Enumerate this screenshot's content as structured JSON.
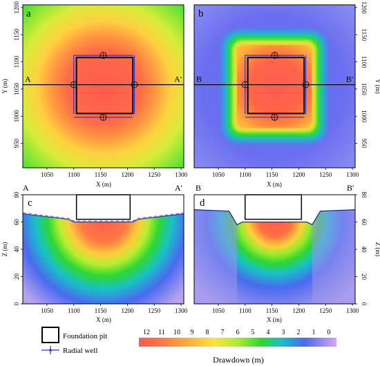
{
  "chart_data": [
    {
      "type": "heatmap",
      "panel": "a",
      "xlabel": "X (m)",
      "ylabel": "Y (m)",
      "xticks": [
        1050,
        1100,
        1150,
        1200,
        1250,
        1300
      ],
      "yticks": [
        950,
        1000,
        1050,
        1100,
        1150,
        1200
      ],
      "xlim": [
        1005,
        1305
      ],
      "ylim": [
        905,
        1205
      ],
      "section_labels": [
        "A",
        "A'"
      ],
      "section_y": 1058,
      "foundation_pit": {
        "x": [
          1105,
          1210
        ],
        "y": [
          1005,
          1108
        ]
      },
      "radial_wells": [
        [
          1155,
          1112
        ],
        [
          1155,
          998
        ],
        [
          1100,
          1058
        ],
        [
          1213,
          1058
        ]
      ],
      "drawdown_max": 11.5
    },
    {
      "type": "heatmap",
      "panel": "b",
      "xlabel": "X (m)",
      "ylabel": "Y (m)",
      "xticks": [
        1050,
        1100,
        1150,
        1200,
        1250,
        1300
      ],
      "yticks": [
        950,
        1000,
        1050,
        1100,
        1150,
        1200
      ],
      "xlim": [
        1005,
        1305
      ],
      "ylim": [
        905,
        1205
      ],
      "section_labels": [
        "B",
        "B'"
      ],
      "section_y": 1058,
      "foundation_pit": {
        "x": [
          1105,
          1210
        ],
        "y": [
          1005,
          1108
        ]
      },
      "radial_wells": [
        [
          1155,
          1112
        ],
        [
          1155,
          998
        ],
        [
          1100,
          1058
        ],
        [
          1213,
          1058
        ]
      ],
      "drawdown_max": 11.5
    },
    {
      "type": "heatmap",
      "panel": "c",
      "xlabel": "X (m)",
      "ylabel": "Z (m)",
      "xticks": [
        1050,
        1100,
        1150,
        1200,
        1250,
        1300
      ],
      "yticks": [
        0,
        20,
        40,
        60,
        80
      ],
      "xlim": [
        1005,
        1305
      ],
      "ylim": [
        0,
        80
      ],
      "foundation_pit": {
        "x": [
          1105,
          1205
        ],
        "z": [
          62,
          80
        ]
      },
      "water_table": [
        [
          1005,
          66
        ],
        [
          1090,
          62
        ],
        [
          1100,
          60
        ],
        [
          1210,
          60
        ],
        [
          1220,
          62
        ],
        [
          1305,
          66
        ]
      ],
      "drawdown_max": 11.5
    },
    {
      "type": "heatmap",
      "panel": "d",
      "xlabel": "X (m)",
      "ylabel": "Z (m)",
      "xticks": [
        1050,
        1100,
        1150,
        1200,
        1250,
        1300
      ],
      "yticks": [
        0,
        20,
        40,
        60,
        80
      ],
      "xlim": [
        1005,
        1305
      ],
      "ylim": [
        0,
        80
      ],
      "foundation_pit": {
        "x": [
          1100,
          1205
        ],
        "z": [
          62,
          80
        ]
      },
      "water_table": [
        [
          1005,
          69
        ],
        [
          1070,
          68
        ],
        [
          1085,
          58
        ],
        [
          1095,
          60
        ],
        [
          1215,
          60
        ],
        [
          1225,
          58
        ],
        [
          1240,
          68
        ],
        [
          1305,
          69
        ]
      ],
      "drawdown_max": 11.5
    }
  ],
  "legend": {
    "pit_label": "Foundation pit",
    "well_label": "Radial well"
  },
  "colorbar": {
    "ticks": [
      "12",
      "11",
      "10",
      "9",
      "8",
      "7",
      "6",
      "5",
      "4",
      "3",
      "2",
      "1",
      "0"
    ],
    "colors": [
      "#ff5a4e",
      "#ff8a3a",
      "#ffd23a",
      "#b6ee2a",
      "#2bd82e",
      "#18c0c8",
      "#4a6aee",
      "#9a96ee",
      "#d6a6ee"
    ],
    "title": "Drawdown (m)"
  }
}
